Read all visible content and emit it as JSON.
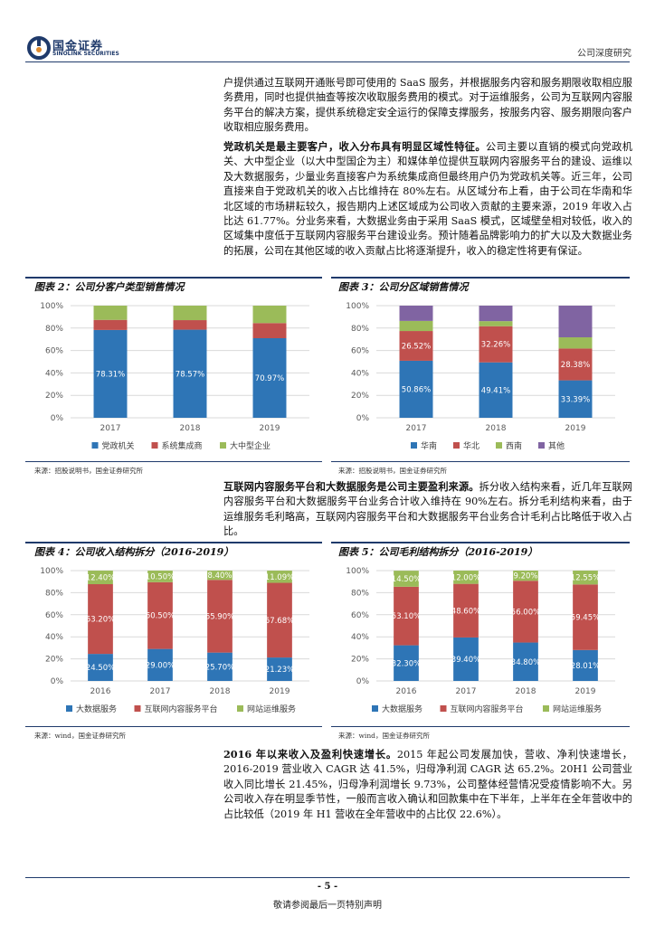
{
  "header": {
    "logo_cn": "国金证券",
    "logo_en": "SINOLINK SECURITIES",
    "report_type": "公司深度研究"
  },
  "paragraphs": {
    "p1": "户提供通过互联网开通账号即可使用的 SaaS 服务，并根据服务内容和服务期限收取相应服务费用，同时也提供抽查等按次收取服务费用的模式。对于运维服务，公司为互联网内容服务平台的解决方案，提供系统稳定安全运行的保障支撑服务，按服务内容、服务期限向客户收取相应服务费用。",
    "p2_bold": "党政机关是最主要客户，收入分布具有明显区域性特征。",
    "p2": "公司主要以直销的模式向党政机关、大中型企业（以大中型国企为主）和媒体单位提供互联网内容服务平台的建设、运维以及大数据服务，少量业务直接客户为系统集成商但最终用户仍为党政机关等。近三年，公司直接来自于党政机关的收入占比维持在 80%左右。从区域分布上看，由于公司在华南和华北区域的市场耕耘较久，报告期内上述区域成为公司收入贡献的主要来源，2019 年收入占比达 61.77%。分业务来看，大数据业务由于采用 SaaS 模式，区域壁垒相对较低，收入的区域集中度低于互联网内容服务平台建设业务。预计随着品牌影响力的扩大以及大数据业务的拓展，公司在其他区域的收入贡献占比将逐渐提升，收入的稳定性将更有保证。",
    "p3_bold": "互联网内容服务平台和大数据服务是公司主要盈利来源。",
    "p3": "拆分收入结构来看，近几年互联网内容服务平台和大数据服务平台业务合计收入维持在 90%左右。拆分毛利结构来看，由于运维服务毛利略高，互联网内容服务平台和大数据服务平台业务合计毛利占比略低于收入占比。",
    "p4_bold": "2016 年以来收入及盈利快速增长。",
    "p4": "2015 年起公司发展加快，营收、净利快速增长，2016-2019 营业收入 CAGR 达 41.5%，归母净利润 CAGR 达 65.2%。20H1 公司营业收入同比增长 21.45%，归母净利润增长 9.73%，公司整体经营情况受疫情影响不大。另公司收入存在明显季节性，一般而言收入确认和回款集中在下半年，上半年在全年营收中的占比较低（2019 年 H1 营收在全年营收中的占比仅 22.6%）。"
  },
  "figures": {
    "fig2": {
      "title": "图表 2：公司分客户类型销售情况",
      "source": "来源：招股说明书，国金证券研究所"
    },
    "fig3": {
      "title": "图表 3：公司分区域销售情况",
      "source": "来源：招股说明书，国金证券研究所"
    },
    "fig4": {
      "title": "图表 4：公司收入结构拆分（2016-2019）",
      "source": "来源：wind，国金证券研究所"
    },
    "fig5": {
      "title": "图表 5：公司毛利结构拆分（2016-2019）",
      "source": "来源：wind，国金证券研究所"
    }
  },
  "chart_data": [
    {
      "type": "bar",
      "stacked": true,
      "categories": [
        "2017",
        "2018",
        "2019"
      ],
      "yticks": [
        "0%",
        "20%",
        "40%",
        "60%",
        "80%",
        "100%"
      ],
      "ylim": [
        0,
        100
      ],
      "series": [
        {
          "name": "党政机关",
          "color": "#2e75b6",
          "values": [
            78.31,
            78.57,
            70.97
          ],
          "labels": [
            "78.31%",
            "78.57%",
            "70.97%"
          ]
        },
        {
          "name": "系统集成商",
          "color": "#c0504d",
          "values": [
            9.0,
            8.5,
            13.5
          ],
          "labels": [
            "",
            "",
            ""
          ]
        },
        {
          "name": "大中型企业",
          "color": "#9bbb59",
          "values": [
            12.69,
            12.93,
            15.53
          ],
          "labels": [
            "",
            "",
            ""
          ]
        }
      ],
      "grid": true,
      "legend": "bottom"
    },
    {
      "type": "bar",
      "stacked": true,
      "categories": [
        "2017",
        "2018",
        "2019"
      ],
      "yticks": [
        "0%",
        "20%",
        "40%",
        "60%",
        "80%",
        "100%"
      ],
      "ylim": [
        0,
        100
      ],
      "series": [
        {
          "name": "华南",
          "color": "#2e75b6",
          "values": [
            50.86,
            49.41,
            33.39
          ],
          "labels": [
            "50.86%",
            "49.41%",
            "33.39%"
          ]
        },
        {
          "name": "华北",
          "color": "#c0504d",
          "values": [
            26.52,
            32.26,
            28.38
          ],
          "labels": [
            "26.52%",
            "32.26%",
            "28.38%"
          ]
        },
        {
          "name": "西南",
          "color": "#9bbb59",
          "values": [
            9.0,
            4.5,
            10.0
          ],
          "labels": [
            "",
            "",
            ""
          ]
        },
        {
          "name": "其他",
          "color": "#8064a2",
          "values": [
            13.62,
            13.83,
            28.23
          ],
          "labels": [
            "",
            "",
            ""
          ]
        }
      ],
      "grid": true,
      "legend": "bottom"
    },
    {
      "type": "bar",
      "stacked": true,
      "categories": [
        "2016",
        "2017",
        "2018",
        "2019"
      ],
      "yticks": [
        "0%",
        "20%",
        "40%",
        "60%",
        "80%",
        "100%"
      ],
      "ylim": [
        0,
        100
      ],
      "series": [
        {
          "name": "大数据服务",
          "color": "#2e75b6",
          "values": [
            24.5,
            29.0,
            25.7,
            21.23
          ],
          "labels": [
            "24.50%",
            "29.00%",
            "25.70%",
            "21.23%"
          ]
        },
        {
          "name": "互联网内容服务平台",
          "color": "#c0504d",
          "values": [
            63.2,
            60.5,
            65.9,
            67.68
          ],
          "labels": [
            "63.20%",
            "60.50%",
            "65.90%",
            "67.68%"
          ]
        },
        {
          "name": "网站运维服务",
          "color": "#9bbb59",
          "values": [
            12.4,
            10.5,
            8.4,
            11.09
          ],
          "labels": [
            "12.40%",
            "10.50%",
            "8.40%",
            "11.09%"
          ]
        }
      ],
      "grid": true,
      "legend": "bottom"
    },
    {
      "type": "bar",
      "stacked": true,
      "categories": [
        "2016",
        "2017",
        "2018",
        "2019"
      ],
      "yticks": [
        "0%",
        "20%",
        "40%",
        "60%",
        "80%",
        "100%"
      ],
      "ylim": [
        0,
        100
      ],
      "series": [
        {
          "name": "大数据服务",
          "color": "#2e75b6",
          "values": [
            32.3,
            39.4,
            34.8,
            28.01
          ],
          "labels": [
            "32.30%",
            "39.40%",
            "34.80%",
            "28.01%"
          ]
        },
        {
          "name": "互联网内容服务平台",
          "color": "#c0504d",
          "values": [
            53.1,
            48.6,
            56.0,
            59.45
          ],
          "labels": [
            "53.10%",
            "48.60%",
            "56.00%",
            "59.45%"
          ]
        },
        {
          "name": "网站运维服务",
          "color": "#9bbb59",
          "values": [
            14.5,
            12.0,
            9.2,
            12.55
          ],
          "labels": [
            "14.50%",
            "12.00%",
            "9.20%",
            "12.55%"
          ]
        }
      ],
      "grid": true,
      "legend": "bottom"
    }
  ],
  "footer": {
    "page_number": "- 5 -",
    "disclaimer": "敬请参阅最后一页特别声明"
  }
}
